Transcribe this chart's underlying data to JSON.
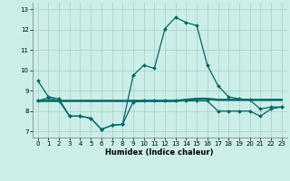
{
  "xlabel": "Humidex (Indice chaleur)",
  "x": [
    0,
    1,
    2,
    3,
    4,
    5,
    6,
    7,
    8,
    9,
    10,
    11,
    12,
    13,
    14,
    15,
    16,
    17,
    18,
    19,
    20,
    21,
    22,
    23
  ],
  "line_upper": [
    9.5,
    8.7,
    8.6,
    7.75,
    7.75,
    7.65,
    7.1,
    7.3,
    7.35,
    9.75,
    10.25,
    10.1,
    12.05,
    12.6,
    12.35,
    12.2,
    10.25,
    9.25,
    8.7,
    8.6,
    8.55,
    8.1,
    8.2,
    8.2
  ],
  "line_flat": [
    8.5,
    8.5,
    8.5,
    8.5,
    8.5,
    8.5,
    8.5,
    8.5,
    8.5,
    8.5,
    8.5,
    8.5,
    8.5,
    8.5,
    8.55,
    8.6,
    8.6,
    8.55,
    8.55,
    8.55,
    8.55,
    8.55,
    8.55,
    8.55
  ],
  "line_lower": [
    8.5,
    8.65,
    8.5,
    7.75,
    7.75,
    7.65,
    7.1,
    7.3,
    7.35,
    8.45,
    8.5,
    8.5,
    8.5,
    8.5,
    8.5,
    8.5,
    8.5,
    8.0,
    8.0,
    8.0,
    8.0,
    7.75,
    8.1,
    8.2
  ],
  "line_color": "#006666",
  "bg_color": "#cceee8",
  "grid_color": "#aacccc",
  "ylim": [
    6.7,
    13.3
  ],
  "xlim": [
    -0.5,
    23.5
  ],
  "yticks": [
    7,
    8,
    9,
    10,
    11,
    12,
    13
  ],
  "xticks": [
    0,
    1,
    2,
    3,
    4,
    5,
    6,
    7,
    8,
    9,
    10,
    11,
    12,
    13,
    14,
    15,
    16,
    17,
    18,
    19,
    20,
    21,
    22,
    23
  ]
}
